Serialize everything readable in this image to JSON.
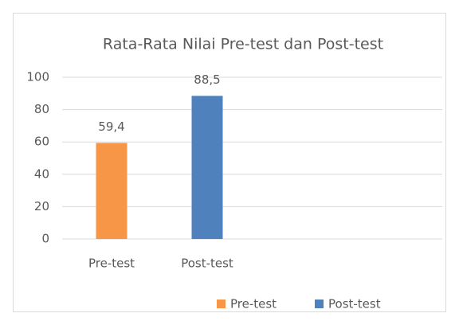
{
  "chart_data": {
    "type": "bar",
    "title": "Rata-Rata Nilai Pre-test dan Post-test",
    "categories": [
      "Pre-test",
      "Post-test"
    ],
    "series": [
      {
        "name": "Pre-test",
        "color": "#f79646",
        "values": [
          59.4,
          null
        ],
        "value_labels": [
          "59,4",
          null
        ]
      },
      {
        "name": "Post-test",
        "color": "#4f81bd",
        "values": [
          null,
          88.5
        ],
        "value_labels": [
          null,
          "88,5"
        ]
      }
    ],
    "ylim": [
      0,
      100
    ],
    "yticks": [
      0,
      20,
      40,
      60,
      80,
      100
    ],
    "grid": true,
    "legend": "bottom"
  }
}
